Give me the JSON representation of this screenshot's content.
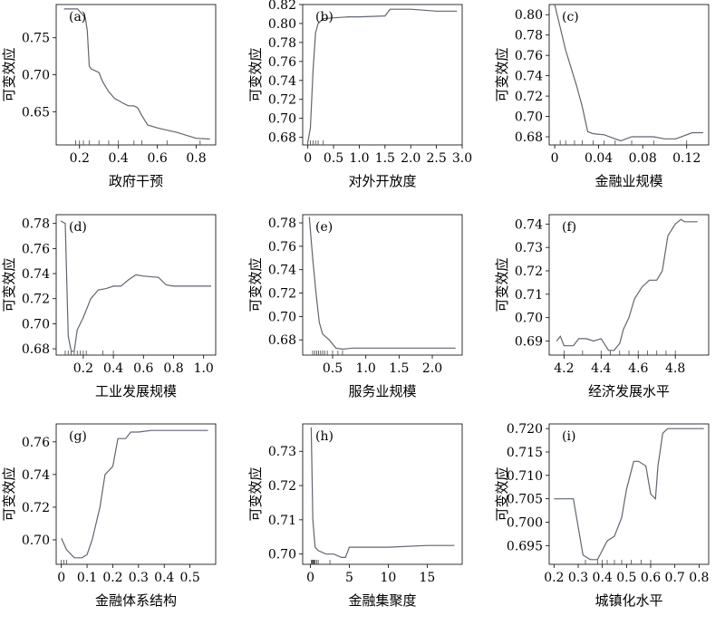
{
  "chart_data": [
    {
      "type": "line",
      "panel_label": "(a)",
      "xlabel": "政府干预",
      "ylabel": "可变效应",
      "xlim": [
        0.08,
        0.9
      ],
      "ylim": [
        0.605,
        0.795
      ],
      "xticks": [
        0.2,
        0.4,
        0.6,
        0.8
      ],
      "xtick_labels": [
        "0.2",
        "0.4",
        "0.6",
        "0.8"
      ],
      "yticks": [
        0.65,
        0.7,
        0.75
      ],
      "ytick_labels": [
        "0.65",
        "0.70",
        "0.75"
      ],
      "series": [
        {
          "x": [
            0.12,
            0.19,
            0.2,
            0.23,
            0.24,
            0.25,
            0.26,
            0.3,
            0.32,
            0.35,
            0.38,
            0.42,
            0.45,
            0.48,
            0.5,
            0.52,
            0.55,
            0.6,
            0.65,
            0.7,
            0.75,
            0.8,
            0.87
          ],
          "y": [
            0.789,
            0.789,
            0.786,
            0.777,
            0.76,
            0.712,
            0.708,
            0.703,
            0.69,
            0.677,
            0.668,
            0.662,
            0.658,
            0.658,
            0.655,
            0.645,
            0.632,
            0.628,
            0.625,
            0.622,
            0.618,
            0.614,
            0.613
          ]
        }
      ],
      "rug": [
        0.18,
        0.2,
        0.22,
        0.25,
        0.3,
        0.35,
        0.4,
        0.48,
        0.52,
        0.65,
        0.82
      ]
    },
    {
      "type": "line",
      "panel_label": "(b)",
      "xlabel": "对外开放度",
      "ylabel": "可变效应",
      "xlim": [
        -0.1,
        3.0
      ],
      "ylim": [
        0.672,
        0.82
      ],
      "xticks": [
        0,
        0.5,
        1.0,
        1.5,
        2.0,
        2.5,
        3.0
      ],
      "xtick_labels": [
        "0",
        "0.5",
        "1.0",
        "1.5",
        "2.0",
        "2.5",
        "3.0"
      ],
      "yticks": [
        0.68,
        0.7,
        0.72,
        0.74,
        0.76,
        0.78,
        0.8,
        0.82
      ],
      "ytick_labels": [
        "0.68",
        "0.70",
        "0.72",
        "0.74",
        "0.76",
        "0.78",
        "0.80",
        "0.82"
      ],
      "series": [
        {
          "x": [
            0.0,
            0.05,
            0.1,
            0.15,
            0.2,
            0.3,
            0.5,
            0.8,
            1.0,
            1.5,
            1.6,
            2.0,
            2.5,
            2.9
          ],
          "y": [
            0.675,
            0.69,
            0.75,
            0.79,
            0.8,
            0.805,
            0.806,
            0.807,
            0.807,
            0.808,
            0.815,
            0.815,
            0.813,
            0.813
          ]
        }
      ],
      "rug": [
        0.0,
        0.05,
        0.1,
        0.15,
        0.2,
        0.3
      ]
    },
    {
      "type": "line",
      "panel_label": "(c)",
      "xlabel": "金融业规模",
      "ylabel": "可变效应",
      "xlim": [
        -0.005,
        0.14
      ],
      "ylim": [
        0.672,
        0.81
      ],
      "xticks": [
        0,
        0.04,
        0.08,
        0.12
      ],
      "xtick_labels": [
        "0",
        "0.04",
        "0.08",
        "0.12"
      ],
      "yticks": [
        0.68,
        0.7,
        0.72,
        0.74,
        0.76,
        0.78,
        0.8
      ],
      "ytick_labels": [
        "0.68",
        "0.70",
        "0.72",
        "0.74",
        "0.76",
        "0.78",
        "0.80"
      ],
      "series": [
        {
          "x": [
            0.0,
            0.01,
            0.02,
            0.025,
            0.03,
            0.035,
            0.045,
            0.055,
            0.06,
            0.07,
            0.09,
            0.1,
            0.11,
            0.125,
            0.135
          ],
          "y": [
            0.81,
            0.765,
            0.73,
            0.71,
            0.685,
            0.683,
            0.682,
            0.678,
            0.676,
            0.68,
            0.68,
            0.678,
            0.678,
            0.684,
            0.684
          ]
        }
      ],
      "rug": [
        0.005,
        0.01,
        0.018,
        0.025,
        0.035,
        0.045,
        0.055,
        0.07,
        0.09,
        0.12
      ]
    },
    {
      "type": "line",
      "panel_label": "(d)",
      "xlabel": "工业发展规模",
      "ylabel": "可变效应",
      "xlim": [
        0.02,
        1.08
      ],
      "ylim": [
        0.675,
        0.787
      ],
      "xticks": [
        0.2,
        0.4,
        0.6,
        0.8,
        1.0
      ],
      "xtick_labels": [
        "0.2",
        "0.4",
        "0.6",
        "0.8",
        "1.0"
      ],
      "yticks": [
        0.68,
        0.7,
        0.72,
        0.74,
        0.76,
        0.78
      ],
      "ytick_labels": [
        "0.68",
        "0.70",
        "0.72",
        "0.74",
        "0.76",
        "0.78"
      ],
      "series": [
        {
          "x": [
            0.05,
            0.08,
            0.1,
            0.12,
            0.14,
            0.16,
            0.2,
            0.25,
            0.3,
            0.35,
            0.4,
            0.45,
            0.5,
            0.55,
            0.6,
            0.7,
            0.75,
            0.8,
            1.05
          ],
          "y": [
            0.782,
            0.78,
            0.69,
            0.678,
            0.678,
            0.695,
            0.705,
            0.72,
            0.727,
            0.728,
            0.73,
            0.73,
            0.735,
            0.739,
            0.738,
            0.737,
            0.731,
            0.73,
            0.73
          ]
        }
      ],
      "rug": [
        0.08,
        0.1,
        0.12,
        0.14,
        0.16,
        0.18,
        0.2,
        0.22,
        0.33,
        0.4
      ]
    },
    {
      "type": "line",
      "panel_label": "(e)",
      "xlabel": "服务业规模",
      "ylabel": "可变效应",
      "xlim": [
        0.05,
        2.45
      ],
      "ylim": [
        0.667,
        0.787
      ],
      "xticks": [
        0.5,
        1.0,
        1.5,
        2.0
      ],
      "xtick_labels": [
        "0.5",
        "1.0",
        "1.5",
        "2.0"
      ],
      "yticks": [
        0.68,
        0.7,
        0.72,
        0.74,
        0.76,
        0.78
      ],
      "ytick_labels": [
        "0.68",
        "0.70",
        "0.72",
        "0.74",
        "0.76",
        "0.78"
      ],
      "series": [
        {
          "x": [
            0.15,
            0.2,
            0.25,
            0.3,
            0.35,
            0.45,
            0.55,
            0.65,
            0.8,
            1.0,
            2.35
          ],
          "y": [
            0.785,
            0.75,
            0.72,
            0.695,
            0.685,
            0.68,
            0.673,
            0.672,
            0.673,
            0.673,
            0.673
          ]
        }
      ],
      "rug": [
        0.2,
        0.23,
        0.26,
        0.29,
        0.32,
        0.35,
        0.38,
        0.42,
        0.5,
        0.58,
        0.65
      ]
    },
    {
      "type": "line",
      "panel_label": "(f)",
      "xlabel": "经济发展水平",
      "ylabel": "可变效应",
      "xlim": [
        4.12,
        4.98
      ],
      "ylim": [
        0.684,
        0.744
      ],
      "xticks": [
        4.2,
        4.4,
        4.6,
        4.8
      ],
      "xtick_labels": [
        "4.2",
        "4.4",
        "4.6",
        "4.8"
      ],
      "yticks": [
        0.69,
        0.7,
        0.71,
        0.72,
        0.73,
        0.74
      ],
      "ytick_labels": [
        "0.69",
        "0.70",
        "0.71",
        "0.72",
        "0.73",
        "0.74"
      ],
      "series": [
        {
          "x": [
            4.16,
            4.18,
            4.2,
            4.25,
            4.28,
            4.32,
            4.36,
            4.4,
            4.44,
            4.47,
            4.5,
            4.52,
            4.55,
            4.58,
            4.62,
            4.66,
            4.7,
            4.73,
            4.76,
            4.8,
            4.83,
            4.85,
            4.92
          ],
          "y": [
            0.69,
            0.692,
            0.688,
            0.688,
            0.691,
            0.691,
            0.69,
            0.691,
            0.686,
            0.686,
            0.689,
            0.695,
            0.7,
            0.708,
            0.713,
            0.716,
            0.716,
            0.72,
            0.735,
            0.74,
            0.742,
            0.741,
            0.741
          ]
        }
      ],
      "rug": [
        4.2,
        4.3,
        4.4,
        4.45,
        4.5,
        4.55,
        4.6,
        4.65,
        4.7,
        4.75,
        4.8
      ]
    },
    {
      "type": "line",
      "panel_label": "(g)",
      "xlabel": "金融体系结构",
      "ylabel": "可变效应",
      "xlim": [
        -0.02,
        0.6
      ],
      "ylim": [
        0.685,
        0.771
      ],
      "xticks": [
        0,
        0.1,
        0.2,
        0.3,
        0.4,
        0.5
      ],
      "xtick_labels": [
        "0",
        "0.1",
        "0.2",
        "0.3",
        "0.4",
        "0.5"
      ],
      "yticks": [
        0.7,
        0.72,
        0.74,
        0.76
      ],
      "ytick_labels": [
        "0.70",
        "0.72",
        "0.74",
        "0.76"
      ],
      "series": [
        {
          "x": [
            0.0,
            0.02,
            0.05,
            0.08,
            0.1,
            0.12,
            0.15,
            0.17,
            0.2,
            0.22,
            0.25,
            0.27,
            0.3,
            0.35,
            0.4,
            0.5,
            0.57
          ],
          "y": [
            0.701,
            0.694,
            0.689,
            0.689,
            0.691,
            0.7,
            0.72,
            0.74,
            0.745,
            0.762,
            0.762,
            0.766,
            0.766,
            0.767,
            0.767,
            0.767,
            0.767
          ]
        }
      ],
      "rug": [
        0.0,
        0.01,
        0.02
      ]
    },
    {
      "type": "line",
      "panel_label": "(h)",
      "xlabel": "金融集聚度",
      "ylabel": "可变效应",
      "xlim": [
        -1,
        19.5
      ],
      "ylim": [
        0.697,
        0.738
      ],
      "xticks": [
        0,
        5,
        10,
        15
      ],
      "xtick_labels": [
        "0",
        "5",
        "10",
        "15"
      ],
      "yticks": [
        0.7,
        0.71,
        0.72,
        0.73
      ],
      "ytick_labels": [
        "0.70",
        "0.71",
        "0.72",
        "0.73"
      ],
      "series": [
        {
          "x": [
            0.1,
            0.3,
            0.6,
            1.0,
            2.0,
            3.0,
            4.0,
            4.5,
            5.0,
            8.0,
            10.0,
            15.0,
            18.5
          ],
          "y": [
            0.737,
            0.71,
            0.702,
            0.701,
            0.7,
            0.7,
            0.699,
            0.699,
            0.702,
            0.702,
            0.702,
            0.7025,
            0.7025
          ]
        }
      ],
      "rug": [
        0.1,
        0.2,
        0.3,
        0.4,
        0.5,
        0.6,
        0.8,
        1.0,
        2.5
      ]
    },
    {
      "type": "line",
      "panel_label": "(i)",
      "xlabel": "城镇化水平",
      "ylabel": "可变效应",
      "xlim": [
        0.18,
        0.84
      ],
      "ylim": [
        0.691,
        0.721
      ],
      "xticks": [
        0.2,
        0.3,
        0.4,
        0.5,
        0.6,
        0.7,
        0.8
      ],
      "xtick_labels": [
        "0.2",
        "0.3",
        "0.4",
        "0.5",
        "0.6",
        "0.7",
        "0.8"
      ],
      "yticks": [
        0.695,
        0.7,
        0.705,
        0.71,
        0.715,
        0.72
      ],
      "ytick_labels": [
        "0.695",
        "0.700",
        "0.705",
        "0.710",
        "0.715",
        "0.720"
      ],
      "series": [
        {
          "x": [
            0.2,
            0.25,
            0.28,
            0.3,
            0.32,
            0.35,
            0.38,
            0.4,
            0.42,
            0.45,
            0.48,
            0.5,
            0.53,
            0.55,
            0.58,
            0.6,
            0.62,
            0.63,
            0.65,
            0.67,
            0.7,
            0.82
          ],
          "y": [
            0.705,
            0.705,
            0.705,
            0.699,
            0.693,
            0.692,
            0.692,
            0.694,
            0.696,
            0.697,
            0.701,
            0.707,
            0.713,
            0.713,
            0.712,
            0.706,
            0.705,
            0.712,
            0.719,
            0.72,
            0.72,
            0.72
          ]
        }
      ],
      "rug": [
        0.33,
        0.38,
        0.4,
        0.42,
        0.45,
        0.48,
        0.52,
        0.56,
        0.6
      ]
    }
  ]
}
